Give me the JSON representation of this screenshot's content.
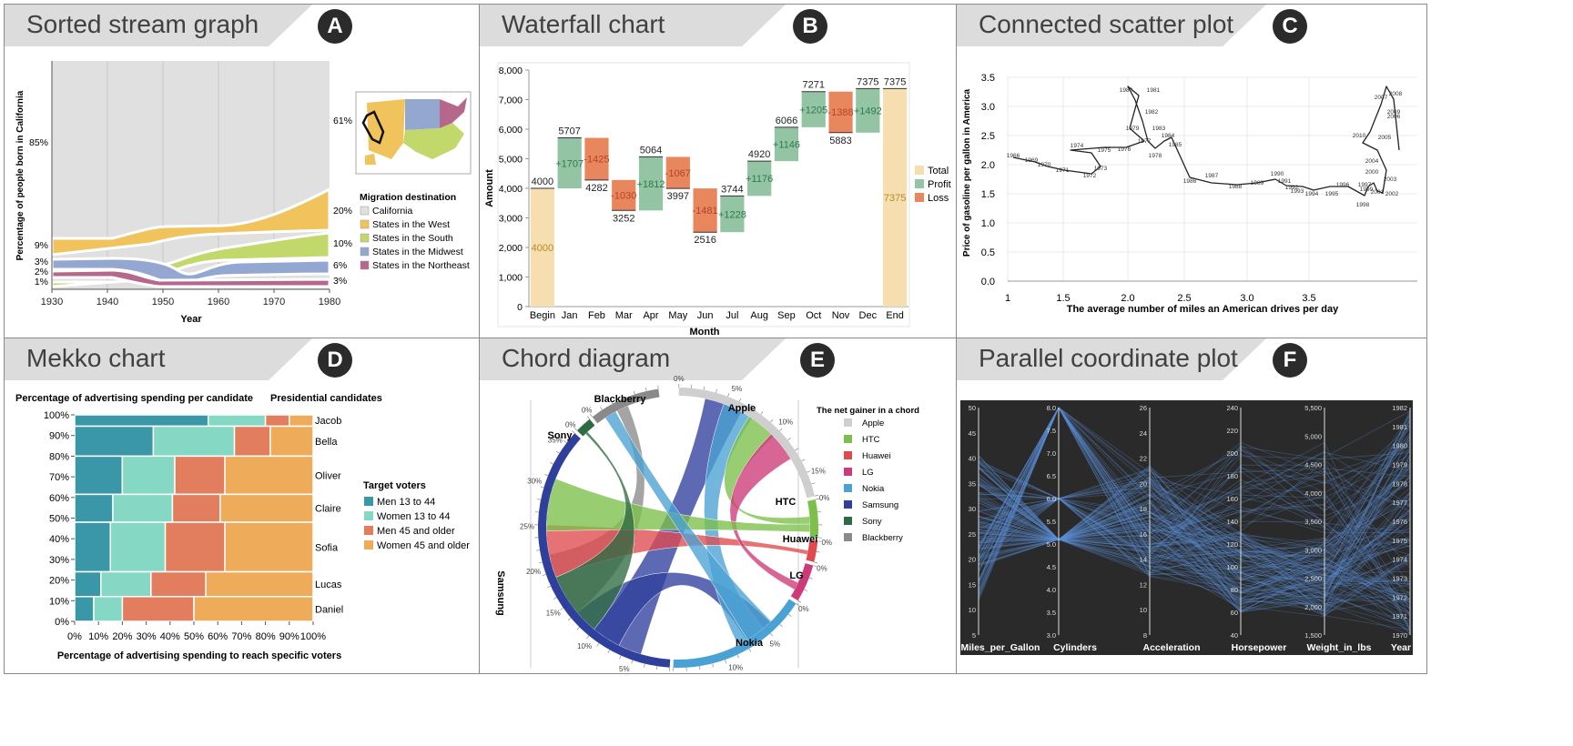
{
  "panels": [
    {
      "title": "Sorted stream graph",
      "badge": "A"
    },
    {
      "title": "Waterfall chart",
      "badge": "B"
    },
    {
      "title": "Connected scatter plot",
      "badge": "C"
    },
    {
      "title": "Mekko chart",
      "badge": "D"
    },
    {
      "title": "Chord diagram",
      "badge": "E"
    },
    {
      "title": "Parallel coordinate plot",
      "badge": "F"
    }
  ],
  "colors": {
    "california": "#e0e0e0",
    "west": "#f0c35c",
    "south": "#c2d86a",
    "midwest": "#93a7d1",
    "northeast": "#b5678c",
    "total": "#f7deb0",
    "profit": "#93c4a4",
    "loss": "#e8865e",
    "men13": "#3a97a8",
    "women13": "#84d8c4",
    "men45": "#e27d5d",
    "women45": "#eeac5a"
  },
  "chart_data": [
    {
      "type": "area",
      "title": "Sorted stream graph",
      "xlabel": "Year",
      "ylabel": "Percentage of people born in California",
      "x": [
        1930,
        1940,
        1950,
        1960,
        1970,
        1980
      ],
      "legend_title": "Migration destination",
      "series": [
        {
          "name": "California",
          "start_label": "85%",
          "end_label": "61%"
        },
        {
          "name": "States in the West",
          "start_label": "9%",
          "end_label": "20%"
        },
        {
          "name": "States in the South",
          "start_label": "1%",
          "end_label": "10%"
        },
        {
          "name": "States in the Midwest",
          "start_label": "3%",
          "end_label": "6%"
        },
        {
          "name": "States in the Northeast",
          "start_label": "2%",
          "end_label": "3%"
        }
      ]
    },
    {
      "type": "bar",
      "title": "Waterfall chart",
      "xlabel": "Month",
      "ylabel": "Amount",
      "ylim": [
        0,
        8000
      ],
      "yticks": [
        "0",
        "1,000",
        "2,000",
        "3,000",
        "4,000",
        "5,000",
        "6,000",
        "7,000",
        "8,000"
      ],
      "legend": [
        "Total",
        "Profit",
        "Loss"
      ],
      "categories": [
        "Begin",
        "Jan",
        "Feb",
        "Mar",
        "Apr",
        "May",
        "Jun",
        "Jul",
        "Aug",
        "Sep",
        "Oct",
        "Nov",
        "Dec",
        "End"
      ],
      "deltas": [
        4000,
        1707,
        -1425,
        -1030,
        1812,
        -1067,
        -1481,
        1228,
        1176,
        1146,
        1205,
        -1388,
        1492,
        7375
      ],
      "delta_labels": [
        "4000",
        "+1707",
        "-1425",
        "-1030",
        "+1812",
        "-1067",
        "-1481",
        "+1228",
        "+1176",
        "+1146",
        "+1205",
        "-1388",
        "+1492",
        "7375"
      ],
      "running": [
        4000,
        5707,
        4282,
        3252,
        5064,
        3997,
        2516,
        3744,
        4920,
        6066,
        7271,
        5883,
        7375,
        7375
      ]
    },
    {
      "type": "line",
      "title": "Connected scatter plot",
      "xlabel": "The average number of miles an American drives per day",
      "ylabel": "Price of gasoline per gallon in America",
      "xticks": [
        "1",
        "1.5",
        "2.0",
        "2.5",
        "3.0",
        "3.5"
      ],
      "yticks": [
        "0.0",
        "0.5",
        "1.0",
        "1.5",
        "2.0",
        "2.5",
        "3.0",
        "3.5"
      ],
      "years": [
        "1966",
        "1969",
        "1970",
        "1971",
        "1972",
        "1973",
        "1974",
        "1975",
        "1976",
        "1977",
        "1978",
        "1979",
        "1980",
        "1981",
        "1982",
        "1983",
        "1984",
        "1985",
        "1986",
        "1987",
        "1988",
        "1989",
        "1990",
        "1991",
        "1992",
        "1993",
        "1994",
        "1995",
        "1996",
        "1997",
        "1998",
        "1999",
        "2000",
        "2001",
        "2002",
        "2003",
        "2004",
        "2005",
        "2006",
        "2007",
        "2008",
        "2009",
        "2010"
      ]
    },
    {
      "type": "bar",
      "title": "Mekko chart",
      "xlabel": "Percentage of advertising spending to reach specific voters",
      "ylabel": "Percentage of advertising spending per candidate",
      "xticks": [
        "0%",
        "10%",
        "20%",
        "30%",
        "40%",
        "50%",
        "60%",
        "70%",
        "80%",
        "90%",
        "100%"
      ],
      "yticks": [
        "0%",
        "10%",
        "20%",
        "30%",
        "40%",
        "50%",
        "60%",
        "70%",
        "80%",
        "90%",
        "100%"
      ],
      "candidates_title": "Presidential candidates",
      "legend_title": "Target voters",
      "segments": [
        "Men 13 to 44",
        "Women 13 to 44",
        "Men 45 and older",
        "Women 45 and older"
      ],
      "candidates": [
        {
          "name": "Jacob",
          "y0": 0.945,
          "y1": 1.0,
          "shares": [
            0.56,
            0.24,
            0.1,
            0.1
          ]
        },
        {
          "name": "Bella",
          "y0": 0.8,
          "y1": 0.945,
          "shares": [
            0.33,
            0.34,
            0.15,
            0.18
          ]
        },
        {
          "name": "Oliver",
          "y0": 0.615,
          "y1": 0.8,
          "shares": [
            0.2,
            0.22,
            0.21,
            0.37
          ]
        },
        {
          "name": "Claire",
          "y0": 0.48,
          "y1": 0.615,
          "shares": [
            0.16,
            0.25,
            0.2,
            0.39
          ]
        },
        {
          "name": "Sofia",
          "y0": 0.24,
          "y1": 0.48,
          "shares": [
            0.15,
            0.23,
            0.25,
            0.37
          ]
        },
        {
          "name": "Lucas",
          "y0": 0.12,
          "y1": 0.24,
          "shares": [
            0.11,
            0.21,
            0.23,
            0.45
          ]
        },
        {
          "name": "Daniel",
          "y0": 0.0,
          "y1": 0.12,
          "shares": [
            0.08,
            0.12,
            0.3,
            0.5
          ]
        }
      ]
    },
    {
      "type": "chord",
      "title": "Chord diagram",
      "legend_title": "The net gainer in a chord",
      "groups": [
        {
          "name": "Apple",
          "color": "#cfcfcf",
          "share": 0.22
        },
        {
          "name": "HTC",
          "color": "#7cbf4a",
          "share": 0.045
        },
        {
          "name": "Huawei",
          "color": "#e04a4f",
          "share": 0.025
        },
        {
          "name": "LG",
          "color": "#cc3a79",
          "share": 0.045
        },
        {
          "name": "Nokia",
          "color": "#4aa2d4",
          "share": 0.17
        },
        {
          "name": "Samsung",
          "color": "#2f3f9c",
          "share": 0.37
        },
        {
          "name": "Sony",
          "color": "#2f6b42",
          "share": 0.02
        },
        {
          "name": "Blackberry",
          "color": "#8a8a8a",
          "share": 0.085
        }
      ],
      "tick_labels": [
        "0%",
        "5%",
        "10%",
        "15%",
        "20%",
        "25%",
        "30%",
        "35%"
      ]
    },
    {
      "type": "parallel",
      "title": "Parallel coordinate plot",
      "axes": [
        {
          "name": "Miles_per_Gallon",
          "ticks": [
            "5",
            "10",
            "15",
            "20",
            "25",
            "30",
            "35",
            "40",
            "45",
            "50"
          ]
        },
        {
          "name": "Cylinders",
          "ticks": [
            "3.0",
            "3.5",
            "4.0",
            "4.5",
            "5.0",
            "5.5",
            "6.0",
            "6.5",
            "7.0",
            "7.5",
            "8.0"
          ]
        },
        {
          "name": "Acceleration",
          "ticks": [
            "8",
            "10",
            "12",
            "14",
            "16",
            "18",
            "20",
            "22",
            "24",
            "26"
          ]
        },
        {
          "name": "Horsepower",
          "ticks": [
            "40",
            "60",
            "80",
            "100",
            "120",
            "140",
            "160",
            "180",
            "200",
            "220",
            "240"
          ]
        },
        {
          "name": "Weight_in_lbs",
          "ticks": [
            "1,500",
            "2,000",
            "2,500",
            "3,000",
            "3,500",
            "4,000",
            "4,500",
            "5,000",
            "5,500"
          ]
        },
        {
          "name": "Year",
          "ticks": [
            "1970",
            "1971",
            "1972",
            "1973",
            "1974",
            "1975",
            "1976",
            "1977",
            "1978",
            "1979",
            "1980",
            "1981",
            "1982"
          ]
        }
      ]
    }
  ]
}
